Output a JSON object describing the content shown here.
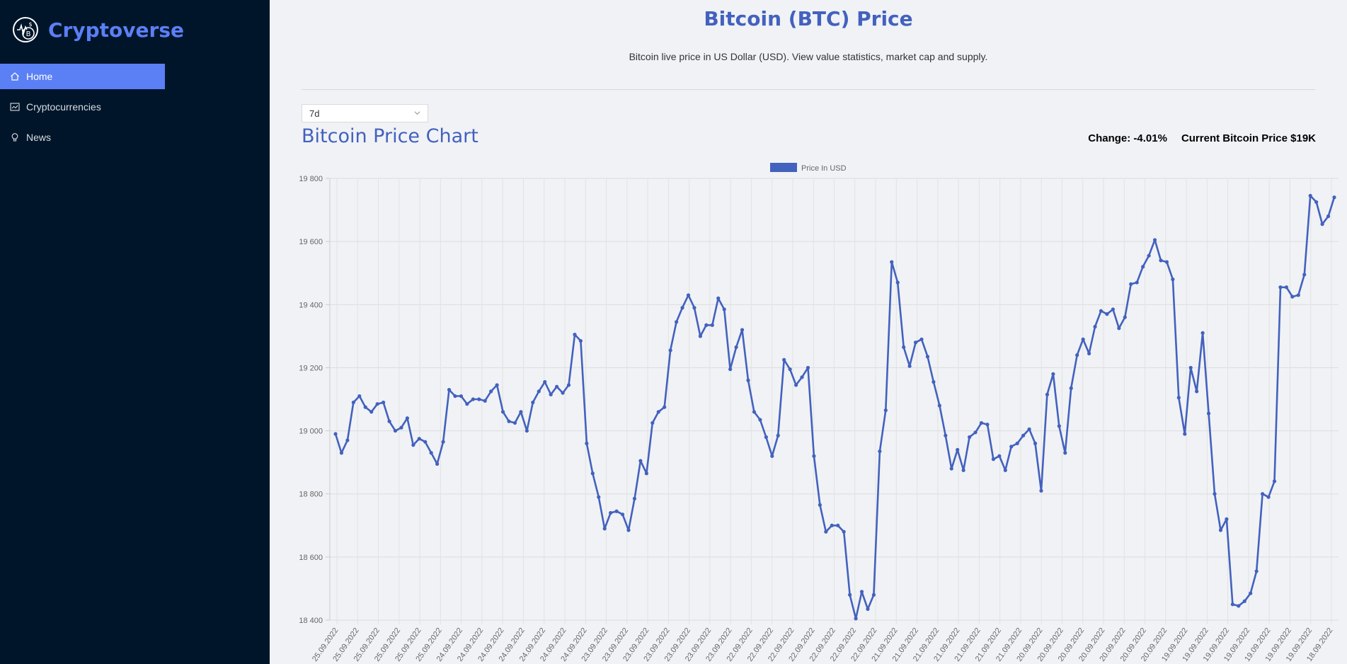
{
  "app": {
    "name": "Cryptoverse",
    "logo_icon": "crypto-coin-logo",
    "accent": "#5b7ff5",
    "sidebar_bg": "#001529"
  },
  "menu": [
    {
      "label": "Home",
      "icon": "home-icon",
      "active": true
    },
    {
      "label": "Cryptocurrencies",
      "icon": "chart-icon",
      "active": false
    },
    {
      "label": "News",
      "icon": "bulb-icon",
      "active": false
    }
  ],
  "header": {
    "title": "Bitcoin (BTC) Price",
    "subtitle": "Bitcoin live price in US Dollar (USD). View value statistics, market cap and supply."
  },
  "timeperiod": {
    "selected": "7d"
  },
  "chart_section": {
    "title": "Bitcoin Price Chart",
    "change": "Change: -4.01%",
    "current_price": "Current Bitcoin Price $19K"
  },
  "chart_data": {
    "type": "line",
    "legend": {
      "label": "Price In USD",
      "position": "top-center"
    },
    "color": "#4361be",
    "ylim": [
      18400,
      19800
    ],
    "yticks": [
      "19 800",
      "19 600",
      "19 400",
      "19 200",
      "19 000",
      "18 800",
      "18 600",
      "18 400"
    ],
    "grid": true,
    "x_labels": [
      "25.09.2022",
      "25.09.2022",
      "25.09.2022",
      "25.09.2022",
      "25.09.2022",
      "25.09.2022",
      "24.09.2022",
      "24.09.2022",
      "24.09.2022",
      "24.09.2022",
      "24.09.2022",
      "24.09.2022",
      "24.09.2022",
      "23.09.2022",
      "23.09.2022",
      "23.09.2022",
      "23.09.2022",
      "23.09.2022",
      "23.09.2022",
      "23.09.2022",
      "22.09.2022",
      "22.09.2022",
      "22.09.2022",
      "22.09.2022",
      "22.09.2022",
      "22.09.2022",
      "22.09.2022",
      "21.09.2022",
      "21.09.2022",
      "21.09.2022",
      "21.09.2022",
      "21.09.2022",
      "21.09.2022",
      "21.09.2022",
      "20.09.2022",
      "20.09.2022",
      "20.09.2022",
      "20.09.2022",
      "20.09.2022",
      "20.09.2022",
      "20.09.2022",
      "19.09.2022",
      "19.09.2022",
      "19.09.2022",
      "19.09.2022",
      "19.09.2022",
      "19.09.2022",
      "19.09.2022",
      "18.09.2022"
    ],
    "values": [
      18990,
      18930,
      18970,
      19090,
      19110,
      19075,
      19060,
      19085,
      19090,
      19030,
      19000,
      19010,
      19040,
      18955,
      18975,
      18965,
      18930,
      18895,
      18965,
      19130,
      19110,
      19110,
      19085,
      19100,
      19100,
      19095,
      19125,
      19145,
      19060,
      19030,
      19025,
      19060,
      19000,
      19090,
      19125,
      19155,
      19115,
      19140,
      19120,
      19145,
      19305,
      19285,
      18960,
      18865,
      18790,
      18690,
      18740,
      18745,
      18735,
      18685,
      18785,
      18905,
      18865,
      19025,
      19060,
      19075,
      19255,
      19345,
      19390,
      19430,
      19390,
      19300,
      19335,
      19335,
      19420,
      19385,
      19195,
      19265,
      19320,
      19160,
      19060,
      19035,
      18980,
      18920,
      18985,
      19225,
      19195,
      19145,
      19170,
      19200,
      18920,
      18765,
      18680,
      18700,
      18700,
      18680,
      18480,
      18405,
      18490,
      18435,
      18480,
      18935,
      19065,
      19535,
      19470,
      19265,
      19205,
      19280,
      19290,
      19235,
      19155,
      19080,
      18985,
      18880,
      18940,
      18875,
      18980,
      18995,
      19025,
      19020,
      18910,
      18920,
      18875,
      18950,
      18960,
      18985,
      19005,
      18960,
      18810,
      19115,
      19180,
      19015,
      18930,
      19135,
      19240,
      19290,
      19245,
      19330,
      19380,
      19370,
      19385,
      19325,
      19360,
      19465,
      19470,
      19520,
      19555,
      19605,
      19540,
      19535,
      19480,
      19105,
      18990,
      19200,
      19125,
      19310,
      19055,
      18800,
      18685,
      18720,
      18450,
      18445,
      18460,
      18485,
      18555,
      18800,
      18790,
      18840,
      19455,
      19455,
      19425,
      19430,
      19495,
      19745,
      19725,
      19655,
      19680,
      19740
    ]
  }
}
